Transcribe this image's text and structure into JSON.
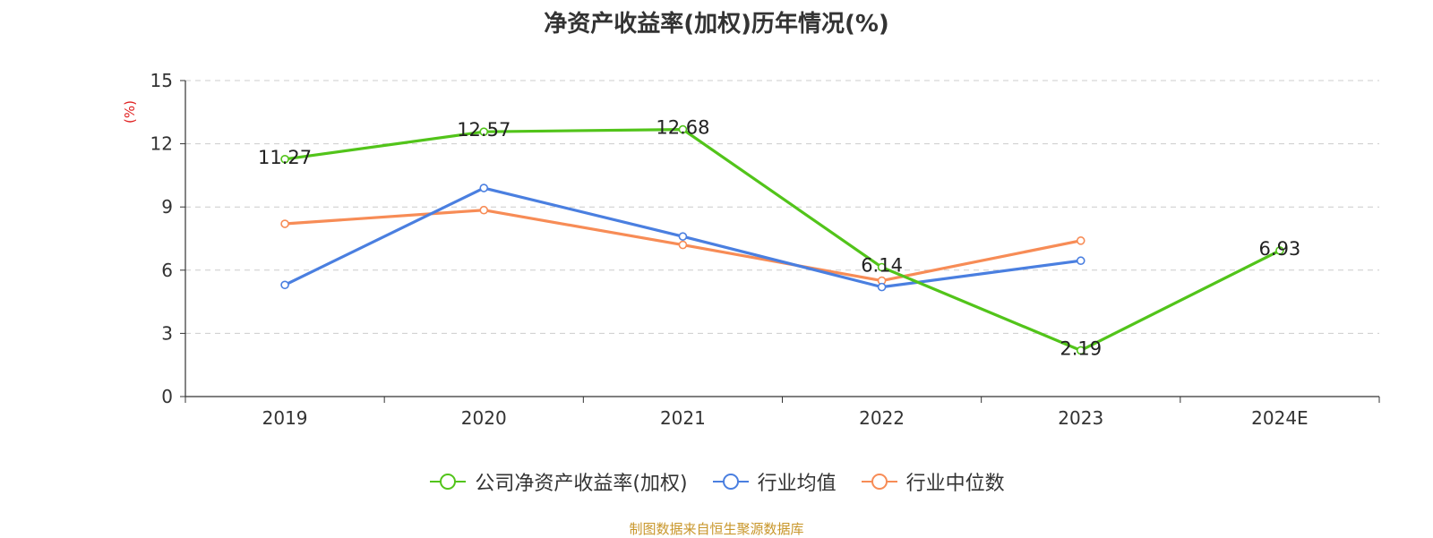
{
  "title": "净资产收益率(加权)历年情况(%)",
  "source": "制图数据来自恒生聚源数据库",
  "chart_data": {
    "type": "line",
    "title": "净资产收益率(加权)历年情况(%)",
    "ylabel": "(%)",
    "ylim": [
      0,
      15
    ],
    "yticks": [
      "0",
      "3",
      "6",
      "9",
      "12",
      "15"
    ],
    "categories": [
      "2019",
      "2020",
      "2021",
      "2022",
      "2023",
      "2024E"
    ],
    "grid": true,
    "legend_position": "bottom",
    "series": [
      {
        "name": "公司净资产收益率(加权)",
        "color": "#52c41a",
        "values": [
          11.27,
          12.57,
          12.68,
          6.14,
          2.19,
          6.93
        ],
        "labels": [
          "11.27",
          "12.57",
          "12.68",
          "6.14",
          "2.19",
          "6.93"
        ]
      },
      {
        "name": "行业均值",
        "color": "#4a7fe0",
        "values": [
          5.3,
          9.9,
          7.6,
          5.2,
          6.45,
          null
        ]
      },
      {
        "name": "行业中位数",
        "color": "#f78c56",
        "values": [
          8.2,
          8.85,
          7.2,
          5.5,
          7.4,
          null
        ]
      }
    ]
  }
}
